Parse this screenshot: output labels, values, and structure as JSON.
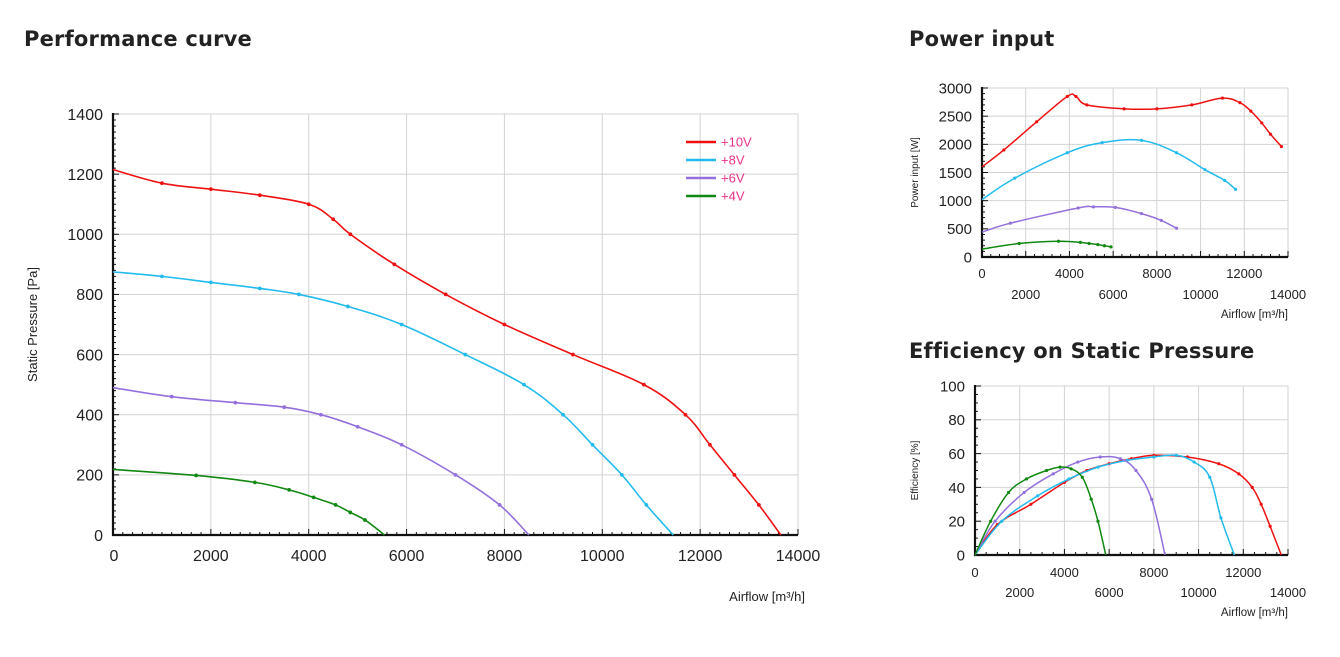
{
  "titles": {
    "performance": "Performance curve",
    "power": "Power input",
    "efficiency": "Efficiency on Static Pressure"
  },
  "colors": {
    "10V": "#ee1111",
    "8V": "#22bbee",
    "6V": "#9370db",
    "4V": "#118811",
    "legend_text": "#e8318a"
  },
  "chart_data": [
    {
      "id": "performance",
      "type": "line",
      "title": "Performance curve",
      "xlabel": "Airflow [m³/h]",
      "ylabel": "Static Pressure [Pa]",
      "xlim": [
        0,
        14000
      ],
      "ylim": [
        0,
        1400
      ],
      "x_ticks": [
        "0",
        "2000",
        "4000",
        "6000",
        "8000",
        "10000",
        "12000",
        "14000"
      ],
      "y_ticks": [
        "0",
        "200",
        "400",
        "600",
        "800",
        "1000",
        "1200",
        "1400"
      ],
      "grid": true,
      "legend": "top-right",
      "series": [
        {
          "name": "+10V",
          "color": "#ee1111",
          "x": [
            0,
            1000,
            2000,
            3000,
            4000,
            4500,
            4850,
            5750,
            6800,
            8000,
            9400,
            10850,
            11700,
            12200,
            12700,
            13200,
            13650
          ],
          "y": [
            1215,
            1170,
            1150,
            1130,
            1100,
            1050,
            1000,
            900,
            800,
            700,
            600,
            500,
            400,
            300,
            200,
            100,
            0
          ]
        },
        {
          "name": "+8V",
          "color": "#22bbee",
          "x": [
            0,
            1000,
            2000,
            3000,
            3800,
            4800,
            5900,
            7200,
            8400,
            9200,
            9800,
            10400,
            10900,
            11450
          ],
          "y": [
            875,
            860,
            840,
            820,
            800,
            760,
            700,
            600,
            500,
            400,
            300,
            200,
            100,
            0
          ]
        },
        {
          "name": "+6V",
          "color": "#9370db",
          "x": [
            0,
            1200,
            2500,
            3500,
            4250,
            5000,
            5900,
            7000,
            7900,
            8500
          ],
          "y": [
            490,
            460,
            440,
            425,
            400,
            360,
            300,
            200,
            100,
            0
          ]
        },
        {
          "name": "+4V",
          "color": "#118811",
          "x": [
            0,
            1700,
            2900,
            3600,
            4100,
            4550,
            4850,
            5150,
            5550
          ],
          "y": [
            218,
            198,
            175,
            150,
            125,
            100,
            75,
            50,
            0
          ]
        }
      ]
    },
    {
      "id": "power",
      "type": "line",
      "title": "Power input",
      "xlabel": "Airflow [m³/h]",
      "ylabel": "Power input [W]",
      "xlim": [
        0,
        14000
      ],
      "ylim": [
        0,
        3000
      ],
      "x_ticks": [
        "0",
        "2000",
        "4000",
        "6000",
        "8000",
        "10000",
        "12000",
        "14000"
      ],
      "y_ticks": [
        "0",
        "500",
        "1000",
        "1500",
        "2000",
        "2500",
        "3000"
      ],
      "grid": true,
      "series": [
        {
          "name": "+10V",
          "color": "#ee1111",
          "x": [
            0,
            1000,
            2500,
            3900,
            4300,
            4800,
            6500,
            8000,
            9600,
            11000,
            11800,
            12300,
            12800,
            13200,
            13700
          ],
          "y": [
            1600,
            1900,
            2400,
            2850,
            2850,
            2700,
            2630,
            2630,
            2700,
            2820,
            2740,
            2590,
            2380,
            2180,
            1960
          ]
        },
        {
          "name": "+8V",
          "color": "#22bbee",
          "x": [
            0,
            1500,
            3900,
            5500,
            7300,
            8900,
            10200,
            11100,
            11600
          ],
          "y": [
            1020,
            1400,
            1850,
            2030,
            2070,
            1850,
            1550,
            1360,
            1200
          ]
        },
        {
          "name": "+6V",
          "color": "#9370db",
          "x": [
            0,
            1300,
            4400,
            5100,
            6100,
            7300,
            8200,
            8900
          ],
          "y": [
            440,
            600,
            870,
            890,
            880,
            770,
            650,
            510
          ]
        },
        {
          "name": "+4V",
          "color": "#118811",
          "x": [
            0,
            1700,
            3500,
            4500,
            4900,
            5300,
            5600,
            5900
          ],
          "y": [
            140,
            240,
            280,
            260,
            240,
            220,
            200,
            180
          ]
        }
      ]
    },
    {
      "id": "efficiency",
      "type": "line",
      "title": "Efficiency on Static Pressure",
      "xlabel": "Airflow [m³/h]",
      "ylabel": "Efficiency [%]",
      "xlim": [
        0,
        14000
      ],
      "ylim": [
        0,
        100
      ],
      "x_ticks": [
        "0",
        "2000",
        "4000",
        "6000",
        "8000",
        "10000",
        "12000",
        "14000"
      ],
      "y_ticks": [
        "0",
        "20",
        "40",
        "60",
        "80",
        "100"
      ],
      "grid": true,
      "series": [
        {
          "name": "+10V",
          "color": "#ee1111",
          "x": [
            0,
            1000,
            2500,
            4000,
            5000,
            6000,
            7000,
            8000,
            9500,
            10900,
            11800,
            12400,
            12800,
            13200,
            13700
          ],
          "y": [
            0,
            18,
            30,
            43,
            50,
            54,
            57,
            59,
            58,
            54,
            48,
            40,
            30,
            17,
            0
          ]
        },
        {
          "name": "+8V",
          "color": "#22bbee",
          "x": [
            0,
            1200,
            2800,
            4200,
            5500,
            6800,
            8000,
            9000,
            9800,
            10500,
            11000,
            11600
          ],
          "y": [
            0,
            20,
            35,
            45,
            52,
            56,
            58,
            59,
            55,
            46,
            22,
            0
          ]
        },
        {
          "name": "+6V",
          "color": "#9370db",
          "x": [
            0,
            900,
            2200,
            3500,
            4600,
            5600,
            6500,
            7200,
            7900,
            8500
          ],
          "y": [
            0,
            20,
            37,
            48,
            55,
            58,
            57,
            50,
            33,
            0
          ]
        },
        {
          "name": "+4V",
          "color": "#118811",
          "x": [
            0,
            700,
            1500,
            2300,
            3200,
            3800,
            4300,
            4800,
            5200,
            5500,
            5850
          ],
          "y": [
            0,
            20,
            37,
            45,
            50,
            52,
            51,
            46,
            33,
            20,
            0
          ]
        }
      ]
    }
  ]
}
